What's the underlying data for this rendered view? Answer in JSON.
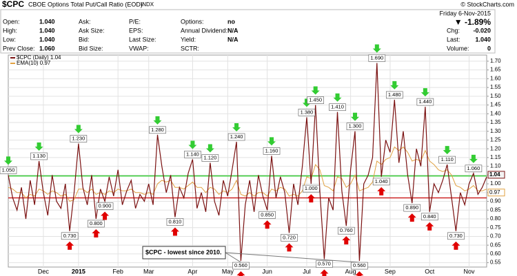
{
  "chart_data": {
    "type": "line",
    "title": "$CPC",
    "subtitle": "CBOE Options Total Put/Call Ratio (EOD)",
    "exchange": "INDX",
    "source": "© StockCharts.com",
    "date": "Friday 6-Nov-2015",
    "change_pct": "▼ -1.89%",
    "quote": [
      [
        {
          "label": "Open:",
          "value": "1.040"
        },
        {
          "label": "High:",
          "value": "1.040"
        },
        {
          "label": "Low:",
          "value": "1.040"
        },
        {
          "label": "Prev Close:",
          "value": "1.060"
        }
      ],
      [
        {
          "label": "Ask:"
        },
        {
          "label": "Ask Size:"
        },
        {
          "label": "Bid:"
        },
        {
          "label": "Bid Size:"
        }
      ],
      [
        {
          "label": "P/E:"
        },
        {
          "label": "EPS:"
        },
        {
          "label": "Last Size:"
        },
        {
          "label": "VWAP:"
        }
      ],
      [
        {
          "label": "Options:",
          "value": "no"
        },
        {
          "label": "Annual Dividend:",
          "value": "N/A"
        },
        {
          "label": "Yield:",
          "value": "N/A"
        },
        {
          "label": "SCTR:"
        }
      ]
    ],
    "side_quote": [
      {
        "label": "Chg:",
        "value": "-0.020"
      },
      {
        "label": "Last:",
        "value": "1.040"
      },
      {
        "label": "Volume:",
        "value": "0"
      }
    ],
    "xlim": [
      0,
      109
    ],
    "xticks": [
      {
        "value": 8,
        "label": "Dec"
      },
      {
        "value": 16,
        "label": "2015"
      },
      {
        "value": 25,
        "label": "Feb"
      },
      {
        "value": 32,
        "label": "Mar"
      },
      {
        "value": 42,
        "label": "Apr"
      },
      {
        "value": 50,
        "label": "May"
      },
      {
        "value": 59,
        "label": "Jun"
      },
      {
        "value": 68,
        "label": "Jul"
      },
      {
        "value": 78,
        "label": "Aug"
      },
      {
        "value": 87,
        "label": "Sep"
      },
      {
        "value": 96,
        "label": "Oct"
      },
      {
        "value": 105,
        "label": "Nov"
      }
    ],
    "ylim": [
      0.525,
      1.735
    ],
    "yticks": [
      0.55,
      {
        "value": 0.6,
        "label": "0.60"
      },
      0.65,
      {
        "value": 0.7,
        "label": "0.70"
      },
      0.75,
      {
        "value": 0.8,
        "label": "0.80"
      },
      0.85,
      {
        "value": 0.9,
        "label": "0.90"
      },
      0.95,
      {
        "value": 1.0,
        "label": "1.00"
      },
      1.05,
      {
        "value": 1.1,
        "label": "1.10"
      },
      1.15,
      {
        "value": 1.2,
        "label": "1.20"
      },
      1.25,
      {
        "value": 1.3,
        "label": "1.30"
      },
      1.35,
      {
        "value": 1.4,
        "label": "1.40"
      },
      1.45,
      {
        "value": 1.5,
        "label": "1.50"
      },
      1.55,
      {
        "value": 1.6,
        "label": "1.60"
      },
      1.65,
      {
        "value": 1.7,
        "label": "1.70"
      }
    ],
    "grid": true,
    "series": [
      {
        "name": "$CPC (Daily) 1.04",
        "color": "#7a1010",
        "last_label": "1.04",
        "values": [
          1.05,
          0.92,
          0.85,
          0.98,
          0.8,
          1.02,
          0.88,
          1.13,
          0.95,
          0.82,
          1.05,
          0.9,
          0.86,
          1.0,
          0.73,
          0.95,
          1.23,
          0.98,
          0.88,
          1.05,
          0.8,
          0.97,
          0.9,
          1.04,
          0.93,
          1.08,
          0.88,
          0.96,
          1.02,
          0.86,
          0.94,
          0.9,
          1.0,
          0.88,
          1.28,
          1.1,
          0.95,
          1.05,
          0.81,
          0.98,
          0.92,
          1.06,
          1.14,
          0.86,
          0.95,
          0.84,
          1.12,
          0.9,
          0.82,
          1.02,
          0.93,
          1.08,
          1.24,
          0.56,
          0.88,
          1.02,
          0.84,
          1.05,
          0.93,
          0.85,
          1.16,
          0.92,
          1.04,
          0.95,
          0.72,
          1.0,
          0.88,
          1.1,
          1.38,
          1.0,
          1.45,
          0.95,
          0.57,
          0.92,
          0.85,
          1.41,
          0.96,
          0.76,
          1.08,
          1.3,
          0.56,
          1.0,
          1.05,
          1.15,
          1.69,
          1.04,
          1.25,
          1.18,
          1.48,
          1.12,
          1.3,
          1.05,
          0.89,
          1.2,
          1.1,
          1.44,
          0.84,
          1.0,
          0.95,
          1.02,
          1.11,
          0.92,
          0.73,
          0.95,
          0.88,
          1.0,
          1.06,
          0.94,
          0.98,
          1.04
        ]
      },
      {
        "name": "EMA(10) 0.97",
        "color": "#e0a040",
        "last_label": "0.97",
        "values": [
          0.98,
          0.97,
          0.95,
          0.95,
          0.92,
          0.94,
          0.93,
          0.97,
          0.96,
          0.94,
          0.96,
          0.95,
          0.93,
          0.94,
          0.9,
          0.91,
          0.97,
          0.97,
          0.95,
          0.97,
          0.94,
          0.95,
          0.94,
          0.96,
          0.95,
          0.97,
          0.96,
          0.96,
          0.97,
          0.95,
          0.95,
          0.94,
          0.95,
          0.94,
          1.0,
          1.02,
          1.01,
          1.02,
          0.98,
          0.98,
          0.97,
          0.99,
          1.01,
          0.98,
          0.98,
          0.95,
          0.98,
          0.97,
          0.94,
          0.96,
          0.95,
          0.97,
          1.02,
          0.94,
          0.93,
          0.95,
          0.93,
          0.95,
          0.95,
          0.93,
          0.97,
          0.96,
          0.98,
          0.97,
          0.93,
          0.94,
          0.93,
          0.96,
          1.04,
          1.03,
          1.11,
          1.08,
          0.99,
          0.98,
          0.96,
          1.04,
          1.03,
          0.98,
          1.0,
          1.05,
          0.96,
          0.97,
          0.98,
          1.01,
          1.13,
          1.11,
          1.14,
          1.15,
          1.21,
          1.19,
          1.21,
          1.18,
          1.13,
          1.14,
          1.13,
          1.19,
          1.13,
          1.11,
          1.08,
          1.07,
          1.08,
          1.05,
          0.99,
          0.98,
          0.96,
          0.97,
          0.99,
          0.96,
          0.96,
          0.97
        ]
      }
    ],
    "hlines": [
      {
        "y": 1.045,
        "color": "#33cc33"
      },
      {
        "y": 0.92,
        "color": "#cc2222"
      }
    ],
    "annotations": [
      {
        "x": 0,
        "label": "1.050"
      },
      {
        "x": 7,
        "label": "1.130"
      },
      {
        "x": 14,
        "label": "0.730"
      },
      {
        "x": 16,
        "label": "1.230"
      },
      {
        "x": 20,
        "label": "0.800"
      },
      {
        "x": 22,
        "label": "0.900"
      },
      {
        "x": 34,
        "label": "1.280"
      },
      {
        "x": 38,
        "label": "0.810"
      },
      {
        "x": 42,
        "label": "1.140"
      },
      {
        "x": 46,
        "label": "1.120"
      },
      {
        "x": 52,
        "label": "1.240"
      },
      {
        "x": 53,
        "label": "0.560"
      },
      {
        "x": 59,
        "label": "0.850"
      },
      {
        "x": 60,
        "label": "1.160"
      },
      {
        "x": 64,
        "label": "0.720"
      },
      {
        "x": 68,
        "label": "1.380"
      },
      {
        "x": 69,
        "label": "1.000"
      },
      {
        "x": 70,
        "label": "1.450"
      },
      {
        "x": 72,
        "label": "0.570"
      },
      {
        "x": 75,
        "label": "1.410"
      },
      {
        "x": 77,
        "label": "0.760"
      },
      {
        "x": 79,
        "label": "1.300"
      },
      {
        "x": 80,
        "label": "0.560"
      },
      {
        "x": 84,
        "label": "1.690"
      },
      {
        "x": 85,
        "label": "1.040"
      },
      {
        "x": 88,
        "label": "1.480"
      },
      {
        "x": 92,
        "label": "0.890"
      },
      {
        "x": 95,
        "label": "1.440"
      },
      {
        "x": 96,
        "label": "0.840"
      },
      {
        "x": 100,
        "label": "1.110"
      },
      {
        "x": 102,
        "label": "0.730"
      },
      {
        "x": 106,
        "label": "1.060"
      }
    ],
    "callout": {
      "text": "$CPC - lowest since 2010.",
      "points": [
        53,
        80
      ]
    }
  }
}
